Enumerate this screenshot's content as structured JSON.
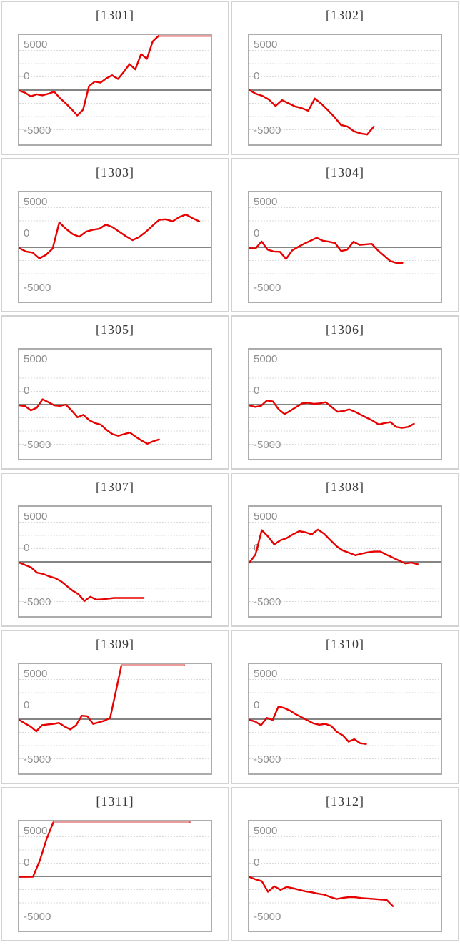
{
  "style": {
    "background": "#ffffff",
    "tile_border": "#d2d2d2",
    "plot_border": "#acacac",
    "title_color": "#3a3a3a",
    "tick_color": "#8e8e8e",
    "gridline_color": "#d9d9d9",
    "zero_line_color": "#737373",
    "line_color": "#e60000",
    "cap_line_color": "#e89c9c"
  },
  "chart_data": [
    {
      "type": "line",
      "title": "[1301]",
      "y_ticks": [
        "5000",
        "0",
        "-5000"
      ],
      "ylim": [
        -10400,
        10400
      ],
      "gridline_interval": 2500,
      "end_frac": 1.0,
      "values": [
        -100,
        -500,
        -1200,
        -800,
        -1000,
        -700,
        -300,
        -1500,
        -2500,
        -3600,
        -4800,
        -3700,
        700,
        1600,
        1400,
        2200,
        2800,
        2100,
        3400,
        4900,
        3900,
        6800,
        5900,
        9200,
        10350,
        10350,
        10350,
        10350,
        10350,
        10350,
        10350,
        10350,
        10350,
        10350
      ]
    },
    {
      "type": "line",
      "title": "[1302]",
      "y_ticks": [
        "5000",
        "0",
        "-5000"
      ],
      "ylim": [
        -10400,
        10400
      ],
      "gridline_interval": 2500,
      "end_frac": 0.65,
      "values": [
        0,
        -700,
        -1100,
        -1800,
        -3000,
        -1900,
        -2500,
        -3100,
        -3400,
        -3900,
        -1600,
        -2600,
        -3800,
        -5100,
        -6600,
        -6900,
        -7800,
        -8200,
        -8400,
        -6900
      ]
    },
    {
      "type": "line",
      "title": "[1303]",
      "y_ticks": [
        "5000",
        "0",
        "-5000"
      ],
      "ylim": [
        -10400,
        10400
      ],
      "gridline_interval": 2500,
      "end_frac": 0.94,
      "values": [
        -150,
        -800,
        -1000,
        -2100,
        -1450,
        -250,
        4700,
        3500,
        2500,
        2000,
        2950,
        3300,
        3500,
        4300,
        3800,
        2950,
        2100,
        1350,
        1950,
        2950,
        4100,
        5200,
        5300,
        4900,
        5700,
        6200,
        5500,
        4900
      ]
    },
    {
      "type": "line",
      "title": "[1304]",
      "y_ticks": [
        "5000",
        "0",
        "-5000"
      ],
      "ylim": [
        -10400,
        10400
      ],
      "gridline_interval": 2500,
      "end_frac": 0.8,
      "values": [
        -150,
        -250,
        1100,
        -450,
        -800,
        -850,
        -2200,
        -600,
        100,
        700,
        1250,
        1800,
        1250,
        1050,
        800,
        -700,
        -450,
        1050,
        450,
        550,
        650,
        -600,
        -1600,
        -2600,
        -2950,
        -2950
      ]
    },
    {
      "type": "line",
      "title": "[1305]",
      "y_ticks": [
        "5000",
        "0",
        "-5000"
      ],
      "ylim": [
        -10400,
        10400
      ],
      "gridline_interval": 2500,
      "end_frac": 0.73,
      "values": [
        -150,
        -300,
        -1100,
        -600,
        1000,
        450,
        -150,
        -250,
        0,
        -1150,
        -2400,
        -1950,
        -2950,
        -3500,
        -3800,
        -4800,
        -5600,
        -5900,
        -5600,
        -5300,
        -6100,
        -6800,
        -7400,
        -6950,
        -6600
      ]
    },
    {
      "type": "line",
      "title": "[1306]",
      "y_ticks": [
        "5000",
        "0",
        "-5000"
      ],
      "ylim": [
        -10400,
        10400
      ],
      "gridline_interval": 2500,
      "end_frac": 0.86,
      "values": [
        -150,
        -450,
        -250,
        770,
        590,
        -900,
        -1800,
        -1150,
        -450,
        230,
        320,
        140,
        230,
        450,
        -450,
        -1360,
        -1230,
        -900,
        -1360,
        -1950,
        -2500,
        -3050,
        -3770,
        -3500,
        -3320,
        -4230,
        -4400,
        -4230,
        -3640
      ]
    },
    {
      "type": "line",
      "title": "[1307]",
      "y_ticks": [
        "5000",
        "0",
        "-5000"
      ],
      "ylim": [
        -10400,
        10400
      ],
      "gridline_interval": 2500,
      "end_frac": 0.65,
      "values": [
        -150,
        -600,
        -1050,
        -2050,
        -2270,
        -2730,
        -3050,
        -3640,
        -4550,
        -5450,
        -6140,
        -7410,
        -6590,
        -7140,
        -7100,
        -6950,
        -6820,
        -6820,
        -6820,
        -6820,
        -6820,
        -6820
      ]
    },
    {
      "type": "line",
      "title": "[1308]",
      "y_ticks": [
        "5000",
        "0",
        "-5000"
      ],
      "ylim": [
        -10400,
        10400
      ],
      "gridline_interval": 2500,
      "end_frac": 0.88,
      "values": [
        -150,
        1400,
        6000,
        4800,
        3300,
        4100,
        4500,
        5200,
        5800,
        5600,
        5200,
        6100,
        5300,
        4100,
        2950,
        2150,
        1700,
        1250,
        1550,
        1800,
        1950,
        1950,
        1350,
        800,
        250,
        -300,
        -150,
        -450
      ]
    },
    {
      "type": "line",
      "title": "[1309]",
      "y_ticks": [
        "5000",
        "0",
        "-5000"
      ],
      "ylim": [
        -10400,
        10400
      ],
      "gridline_interval": 2500,
      "end_frac": 0.86,
      "values": [
        -150,
        -800,
        -1400,
        -2300,
        -1150,
        -1000,
        -900,
        -700,
        -1400,
        -1950,
        -1150,
        650,
        550,
        -900,
        -600,
        -300,
        250,
        5200,
        10350,
        10350,
        10350,
        10350,
        10350,
        10350,
        10350,
        10350,
        10350,
        10350,
        10350,
        10350
      ]
    },
    {
      "type": "line",
      "title": "[1310]",
      "y_ticks": [
        "5000",
        "0",
        "-5000"
      ],
      "ylim": [
        -10400,
        10400
      ],
      "gridline_interval": 2500,
      "end_frac": 0.61,
      "values": [
        -150,
        -450,
        -1150,
        250,
        -150,
        2400,
        2100,
        1600,
        900,
        320,
        -250,
        -800,
        -1050,
        -900,
        -1250,
        -2400,
        -3050,
        -4250,
        -3800,
        -4550,
        -4700
      ]
    },
    {
      "type": "line",
      "title": "[1311]",
      "y_ticks": [
        "5000",
        "0",
        "-5000"
      ],
      "ylim": [
        -10400,
        10400
      ],
      "gridline_interval": 2500,
      "end_frac": 0.89,
      "values": [
        -100,
        -100,
        -80,
        2950,
        7050,
        10350,
        10350,
        10350,
        10350,
        10350,
        10350,
        10350,
        10350,
        10350,
        10350,
        10350,
        10350,
        10350,
        10350,
        10350,
        10350,
        10350,
        10350,
        10350,
        10350,
        10350
      ]
    },
    {
      "type": "line",
      "title": "[1312]",
      "y_ticks": [
        "5000",
        "0",
        "-5000"
      ],
      "ylim": [
        -10400,
        10400
      ],
      "gridline_interval": 2500,
      "end_frac": 0.75,
      "values": [
        -90,
        -550,
        -900,
        -2900,
        -1860,
        -2540,
        -2000,
        -2230,
        -2540,
        -2820,
        -3000,
        -3270,
        -3450,
        -3900,
        -4270,
        -4050,
        -3900,
        -3950,
        -4090,
        -4180,
        -4270,
        -4360,
        -4450,
        -5630
      ]
    }
  ]
}
